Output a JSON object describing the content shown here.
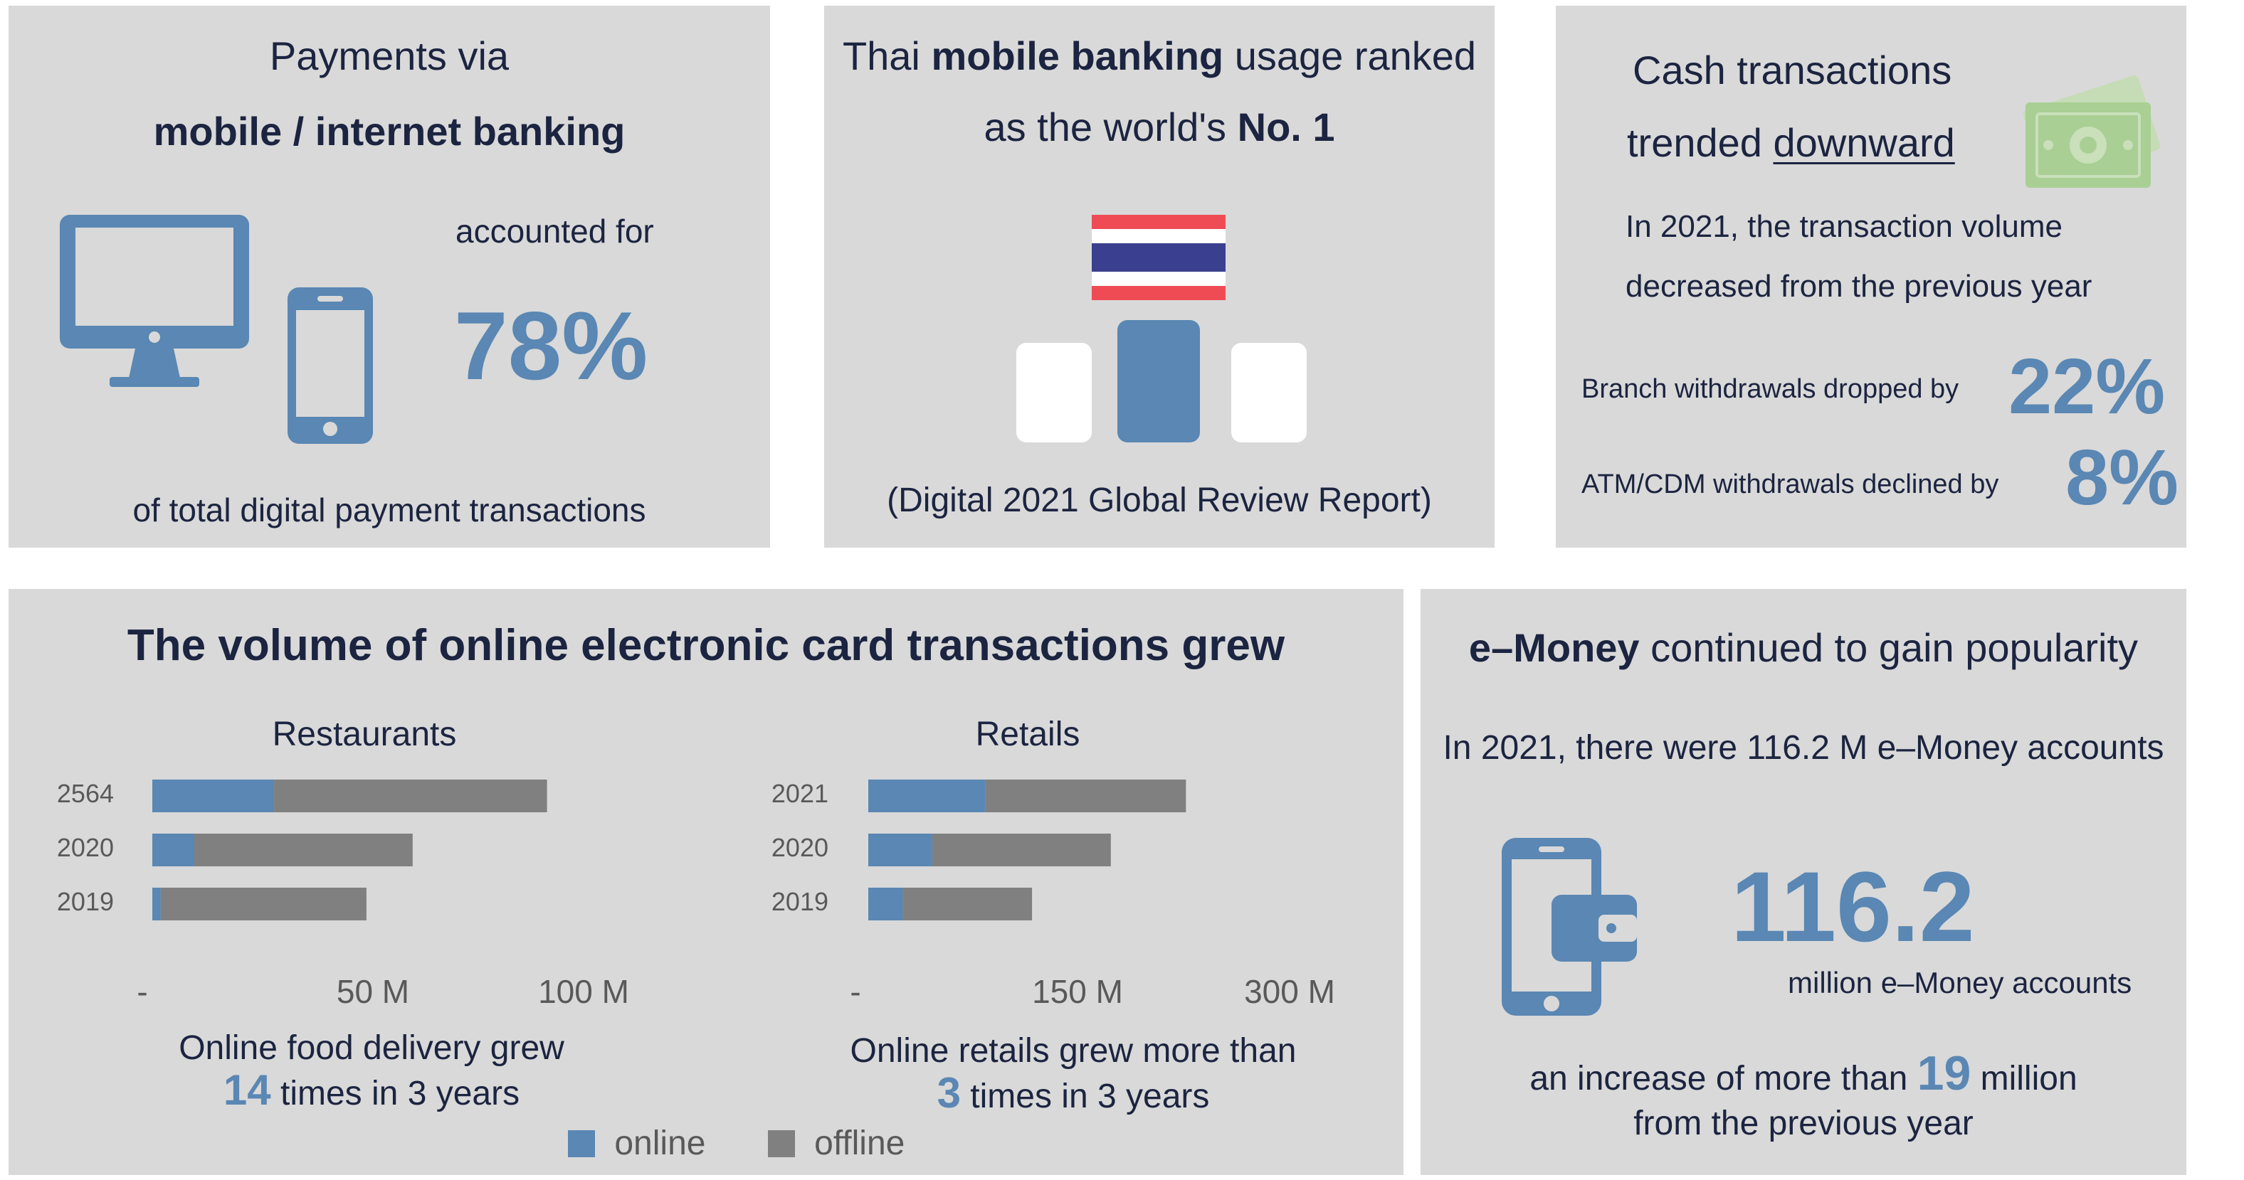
{
  "panel1": {
    "title_line1": "Payments via",
    "title_line2": "mobile / internet banking",
    "accounted": "accounted for",
    "percent": "78%",
    "footer": "of total digital payment transactions"
  },
  "panel2": {
    "title_pre": "Thai ",
    "title_bold": "mobile banking",
    "title_post": " usage ranked",
    "title_line2_pre": "as the world's ",
    "title_line2_bold": "No. 1",
    "source": "(Digital 2021 Global Review Report)"
  },
  "panel3": {
    "title_line1": "Cash transactions",
    "title_line2_pre": "trended ",
    "title_line2_under": "downward",
    "sub_line1": "In 2021, the transaction volume",
    "sub_line2": "decreased from the previous year",
    "branch_label": "Branch withdrawals dropped by",
    "branch_value": "22%",
    "atm_label": "ATM/CDM withdrawals declined by",
    "atm_value": "8%"
  },
  "panel4": {
    "title": "The volume of online electronic card transactions grew",
    "legend_online": "online",
    "legend_offline": "offline",
    "restaurants_caption_line1": "Online food delivery grew",
    "restaurants_caption_num": "14",
    "restaurants_caption_rest": " times in 3 years",
    "retails_caption_line1": "Online retails grew more than",
    "retails_caption_num": "3",
    "retails_caption_rest": " times in 3 years"
  },
  "panel5": {
    "title_bold": "e–Money",
    "title_rest": " continued to gain popularity",
    "subtitle": "In 2021, there were 116.2 M e–Money accounts",
    "big_number": "116.2",
    "big_label": "million e–Money accounts",
    "increase_pre": "an increase of more than ",
    "increase_num": "19",
    "increase_post": " million",
    "increase_line2": "from the previous year"
  },
  "colors": {
    "panel_bg": "#d9d9d9",
    "accent_blue": "#5a87b3",
    "offline_gray": "#808080",
    "text_navy": "#1b2440",
    "money_green": "#a9cf94"
  },
  "icons": [
    "desktop-monitor-icon",
    "smartphone-icon",
    "thailand-flag-icon",
    "podium-icon",
    "banknote-icon",
    "wallet-phone-icon"
  ],
  "chart_data": [
    {
      "type": "bar",
      "orientation": "horizontal",
      "stacked": true,
      "title": "Restaurants",
      "categories": [
        "2564",
        "2020",
        "2019"
      ],
      "series": [
        {
          "name": "online",
          "values": [
            29,
            10,
            2
          ],
          "color": "#5a87b3"
        },
        {
          "name": "offline",
          "values": [
            65,
            52,
            49
          ],
          "color": "#808080"
        }
      ],
      "xticks": [
        "-",
        "50 M",
        "100 M"
      ],
      "xlim": [
        0,
        100
      ],
      "legend": "bottom",
      "grid": false
    },
    {
      "type": "bar",
      "orientation": "horizontal",
      "stacked": true,
      "title": "Retails",
      "categories": [
        "2021",
        "2020",
        "2019"
      ],
      "series": [
        {
          "name": "online",
          "values": [
            95,
            52,
            28
          ],
          "color": "#5a87b3"
        },
        {
          "name": "offline",
          "values": [
            163,
            145,
            105
          ],
          "color": "#808080"
        }
      ],
      "xticks": [
        "-",
        "150 M",
        "300 M"
      ],
      "xlim": [
        0,
        300
      ],
      "legend": "bottom",
      "grid": false
    }
  ]
}
